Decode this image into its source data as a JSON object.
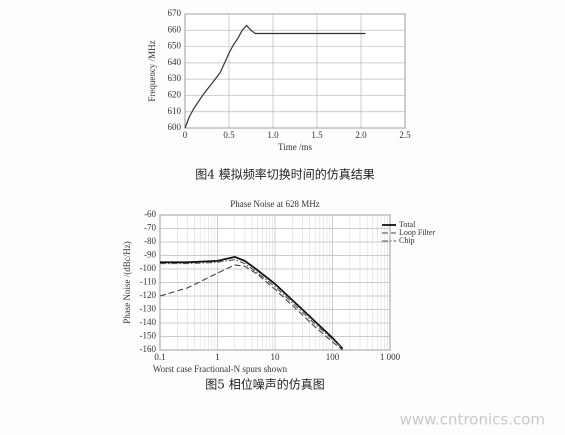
{
  "chart_data": [
    {
      "type": "line",
      "x_label": "Time /ms",
      "y_label": "Frequency /MHz",
      "caption": "图4  模拟频率切换时间的仿真结果",
      "x": [
        0,
        0.05,
        0.1,
        0.2,
        0.3,
        0.4,
        0.45,
        0.5,
        0.55,
        0.6,
        0.65,
        0.7,
        0.75,
        0.8,
        0.9,
        1.0,
        1.5,
        2.05
      ],
      "values": [
        600,
        607,
        612,
        620,
        627,
        634,
        640,
        646,
        651,
        655,
        660,
        663,
        660,
        658,
        658,
        658,
        658,
        658
      ],
      "color": "#333333",
      "xlim": [
        0,
        2.5
      ],
      "xticks": [
        0,
        0.5,
        {
          "value": 1,
          "label": "1.0"
        },
        1.5,
        {
          "value": 2,
          "label": "2.0"
        },
        2.5
      ],
      "ylim": [
        600,
        670
      ],
      "yticks": [
        600,
        610,
        620,
        630,
        640,
        650,
        660,
        670
      ],
      "grid": true
    },
    {
      "type": "line",
      "title": "Phase Noise at 628 MHz",
      "x_label": "Worst case Fractional-N spurs shown",
      "y_label": "Phase Noise /(dBc/Hz)",
      "caption": "图5  相位噪声的仿真图",
      "xscale": "log",
      "x": [
        0.1,
        0.3,
        1,
        2,
        3,
        5,
        10,
        20,
        30,
        50,
        100,
        150
      ],
      "series": [
        {
          "name": "Total",
          "color": "#111111",
          "dash": "solid",
          "values": [
            -95,
            -95,
            -94,
            -91,
            -94,
            -101,
            -111,
            -123,
            -130,
            -139,
            -151,
            -159
          ]
        },
        {
          "name": "Loop Filter",
          "color": "#444444",
          "dash": "dashed",
          "values": [
            -120,
            -114,
            -103,
            -97,
            -98,
            -104,
            -115,
            -127,
            -134,
            -143,
            -154,
            -160
          ]
        },
        {
          "name": "Chip",
          "color": "#555555",
          "dash": "dashdot",
          "values": [
            -96,
            -96,
            -95,
            -93,
            -96,
            -103,
            -113,
            -125,
            -132,
            -141,
            -152,
            -159
          ]
        }
      ],
      "xlim": [
        0.1,
        1000
      ],
      "xticks": [
        0.1,
        1,
        10,
        100,
        {
          "value": 1000,
          "label": "1 000"
        }
      ],
      "ylim": [
        -160,
        -60
      ],
      "yticks": [
        -60,
        -70,
        -80,
        -90,
        -100,
        -110,
        -120,
        -130,
        -140,
        -150,
        -160
      ],
      "grid": true,
      "legend": "upper right"
    }
  ],
  "watermark": "www.cntronics.com"
}
